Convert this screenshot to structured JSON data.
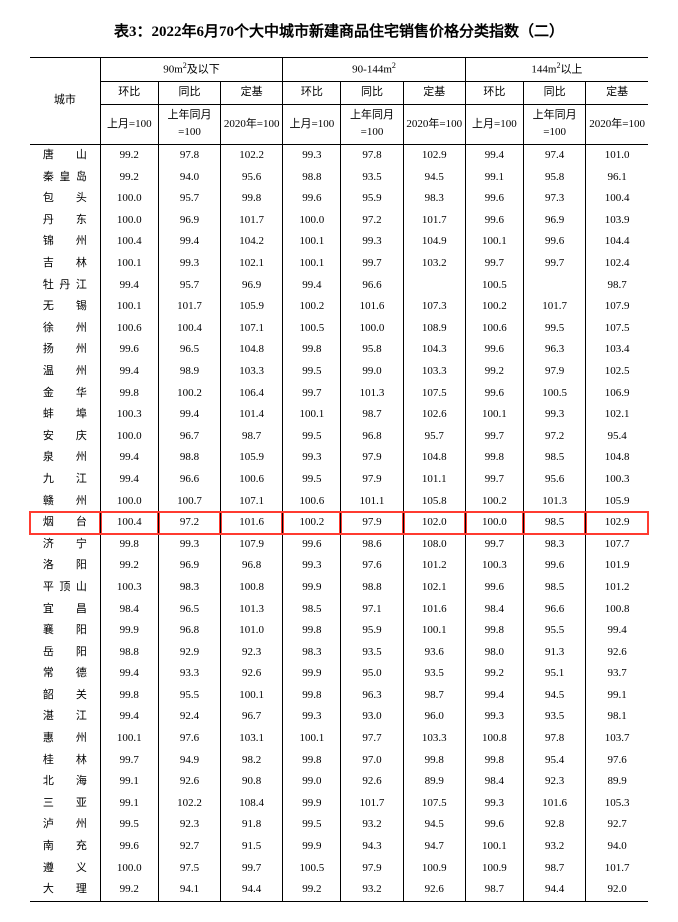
{
  "title": "表3：2022年6月70个大中城市新建商品住宅销售价格分类指数（二）",
  "header": {
    "cityLabel": "城市",
    "groups": [
      "90m²及以下",
      "90-144m²",
      "144m²以上"
    ],
    "sub": [
      "环比",
      "同比",
      "定基"
    ],
    "base": [
      "上月=100",
      "上年同月=100",
      "2020年=100"
    ]
  },
  "highlightCity": "烟　台",
  "rows": [
    {
      "city": "唐　山",
      "v": [
        99.2,
        97.8,
        102.2,
        99.3,
        97.8,
        102.9,
        99.4,
        97.4,
        101.0
      ]
    },
    {
      "city": "秦皇岛",
      "v": [
        99.2,
        94.0,
        95.6,
        98.8,
        93.5,
        94.5,
        99.1,
        95.8,
        96.1
      ]
    },
    {
      "city": "包　头",
      "v": [
        100.0,
        95.7,
        99.8,
        99.6,
        95.9,
        98.3,
        99.6,
        97.3,
        100.4
      ]
    },
    {
      "city": "丹　东",
      "v": [
        100.0,
        96.9,
        101.7,
        100.0,
        97.2,
        101.7,
        99.6,
        96.9,
        103.9
      ]
    },
    {
      "city": "锦　州",
      "v": [
        100.4,
        99.4,
        104.2,
        100.1,
        99.3,
        104.9,
        100.1,
        99.6,
        104.4
      ]
    },
    {
      "city": "吉　林",
      "v": [
        100.1,
        99.3,
        102.1,
        100.1,
        99.7,
        103.2,
        99.7,
        99.7,
        102.4
      ]
    },
    {
      "city": "牡丹江",
      "v": [
        99.4,
        95.7,
        96.9,
        99.4,
        96.6,
        "",
        100.5,
        "",
        98.7
      ]
    },
    {
      "city": "无　锡",
      "v": [
        100.1,
        101.7,
        105.9,
        100.2,
        101.6,
        107.3,
        100.2,
        101.7,
        107.9
      ]
    },
    {
      "city": "徐　州",
      "v": [
        100.6,
        100.4,
        107.1,
        100.5,
        100.0,
        108.9,
        100.6,
        99.5,
        107.5
      ]
    },
    {
      "city": "扬　州",
      "v": [
        99.6,
        96.5,
        104.8,
        99.8,
        95.8,
        104.3,
        99.6,
        96.3,
        103.4
      ]
    },
    {
      "city": "温　州",
      "v": [
        99.4,
        98.9,
        103.3,
        99.5,
        99.0,
        103.3,
        99.2,
        97.9,
        102.5
      ]
    },
    {
      "city": "金　华",
      "v": [
        99.8,
        100.2,
        106.4,
        99.7,
        101.3,
        107.5,
        99.6,
        100.5,
        106.9
      ]
    },
    {
      "city": "蚌　埠",
      "v": [
        100.3,
        99.4,
        101.4,
        100.1,
        98.7,
        102.6,
        100.1,
        99.3,
        102.1
      ]
    },
    {
      "city": "安　庆",
      "v": [
        100.0,
        96.7,
        98.7,
        99.5,
        96.8,
        95.7,
        99.7,
        97.2,
        95.4
      ]
    },
    {
      "city": "泉　州",
      "v": [
        99.4,
        98.8,
        105.9,
        99.3,
        97.9,
        104.8,
        99.8,
        98.5,
        104.8
      ]
    },
    {
      "city": "九　江",
      "v": [
        99.4,
        96.6,
        100.6,
        99.5,
        97.9,
        101.1,
        99.7,
        95.6,
        100.3
      ]
    },
    {
      "city": "赣　州",
      "v": [
        100.0,
        100.7,
        107.1,
        100.6,
        101.1,
        105.8,
        100.2,
        101.3,
        105.9
      ]
    },
    {
      "city": "烟　台",
      "v": [
        100.4,
        97.2,
        101.6,
        100.2,
        97.9,
        102.0,
        100.0,
        98.5,
        102.9
      ]
    },
    {
      "city": "济　宁",
      "v": [
        99.8,
        99.3,
        107.9,
        99.6,
        98.6,
        108.0,
        99.7,
        98.3,
        107.7
      ]
    },
    {
      "city": "洛　阳",
      "v": [
        99.2,
        96.9,
        96.8,
        99.3,
        97.6,
        101.2,
        100.3,
        99.6,
        101.9
      ]
    },
    {
      "city": "平顶山",
      "v": [
        100.3,
        98.3,
        100.8,
        99.9,
        98.8,
        102.1,
        99.6,
        98.5,
        101.2
      ]
    },
    {
      "city": "宜　昌",
      "v": [
        98.4,
        96.5,
        101.3,
        98.5,
        97.1,
        101.6,
        98.4,
        96.6,
        100.8
      ]
    },
    {
      "city": "襄　阳",
      "v": [
        99.9,
        96.8,
        101.0,
        99.8,
        95.9,
        100.1,
        99.8,
        95.5,
        99.4
      ]
    },
    {
      "city": "岳　阳",
      "v": [
        98.8,
        92.9,
        92.3,
        98.3,
        93.5,
        93.6,
        98.0,
        91.3,
        92.6
      ]
    },
    {
      "city": "常　德",
      "v": [
        99.4,
        93.3,
        92.6,
        99.9,
        95.0,
        93.5,
        99.2,
        95.1,
        93.7
      ]
    },
    {
      "city": "韶　关",
      "v": [
        99.8,
        95.5,
        100.1,
        99.8,
        96.3,
        98.7,
        99.4,
        94.5,
        99.1
      ]
    },
    {
      "city": "湛　江",
      "v": [
        99.4,
        92.4,
        96.7,
        99.3,
        93.0,
        96.0,
        99.3,
        93.5,
        98.1
      ]
    },
    {
      "city": "惠　州",
      "v": [
        100.1,
        97.6,
        103.1,
        100.1,
        97.7,
        103.3,
        100.8,
        97.8,
        103.7
      ]
    },
    {
      "city": "桂　林",
      "v": [
        99.7,
        94.9,
        98.2,
        99.8,
        97.0,
        99.8,
        99.8,
        95.4,
        97.6
      ]
    },
    {
      "city": "北　海",
      "v": [
        99.1,
        92.6,
        90.8,
        99.0,
        92.6,
        89.9,
        98.4,
        92.3,
        89.9
      ]
    },
    {
      "city": "三　亚",
      "v": [
        99.1,
        102.2,
        108.4,
        99.9,
        101.7,
        107.5,
        99.3,
        101.6,
        105.3
      ]
    },
    {
      "city": "泸　州",
      "v": [
        99.5,
        92.3,
        91.8,
        99.5,
        93.2,
        94.5,
        99.6,
        92.8,
        92.7
      ]
    },
    {
      "city": "南　充",
      "v": [
        99.6,
        92.7,
        91.5,
        99.9,
        94.3,
        94.7,
        100.1,
        93.2,
        94.0
      ]
    },
    {
      "city": "遵　义",
      "v": [
        100.0,
        97.5,
        99.7,
        100.5,
        97.9,
        100.9,
        100.9,
        98.7,
        101.7
      ]
    },
    {
      "city": "大　理",
      "v": [
        99.2,
        94.1,
        94.4,
        99.2,
        93.2,
        92.6,
        98.7,
        94.4,
        92.0
      ]
    }
  ]
}
